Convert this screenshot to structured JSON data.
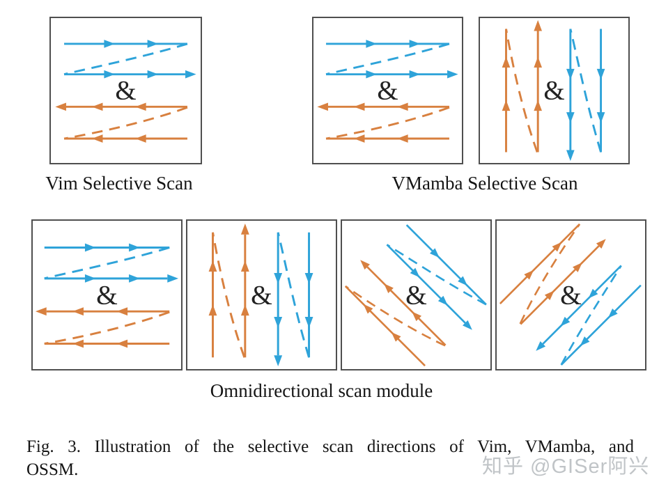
{
  "colors": {
    "blue": "#2ea3d9",
    "orange": "#d8803f",
    "box_border": "#4f4f4f",
    "text": "#141414",
    "ampersand": "#222222",
    "watermark": "rgba(154,159,165,0.62)"
  },
  "ampersand": "&",
  "groups": [
    {
      "id": "vim",
      "label": "Vim Selective Scan",
      "panels": [
        {
          "type": "horizontal",
          "blue_scan": "left-to-right",
          "orange_scan": "right-to-left"
        }
      ]
    },
    {
      "id": "vmamba",
      "label": "VMamba Selective Scan",
      "panels": [
        {
          "type": "horizontal",
          "blue_scan": "left-to-right",
          "orange_scan": "right-to-left"
        },
        {
          "type": "vertical",
          "orange_scan": "bottom-to-top",
          "blue_scan": "top-to-bottom"
        }
      ]
    },
    {
      "id": "ossm",
      "label": "Omnidirectional scan module",
      "panels": [
        {
          "type": "horizontal",
          "blue_scan": "left-to-right",
          "orange_scan": "right-to-left"
        },
        {
          "type": "vertical",
          "orange_scan": "bottom-to-top",
          "blue_scan": "top-to-bottom"
        },
        {
          "type": "diagonal-down-right",
          "blue_scan": "down-right",
          "orange_scan": "up-left"
        },
        {
          "type": "diagonal-up-right",
          "orange_scan": "up-right",
          "blue_scan": "down-left"
        }
      ]
    }
  ],
  "caption": {
    "line1": "Fig. 3.   Illustration of the selective scan directions of Vim, VMamba, and",
    "line2": "OSSM."
  },
  "watermark": {
    "text": "知乎 @GISer阿兴"
  }
}
